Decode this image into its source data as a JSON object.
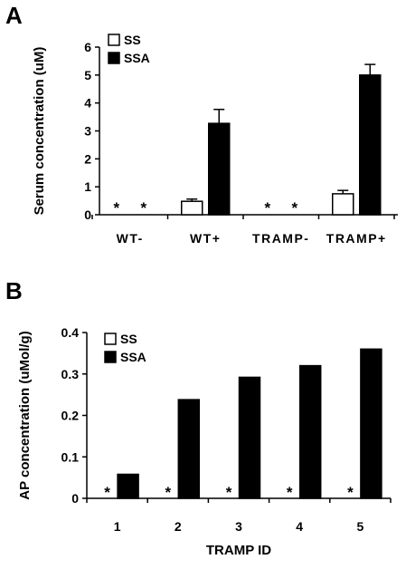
{
  "panels": {
    "a_letter": "A",
    "b_letter": "B"
  },
  "chart_data": [
    {
      "type": "bar",
      "panel": "A",
      "ylabel": "Serum concentration (uM)",
      "xlabel": "",
      "ylim": [
        0,
        6
      ],
      "yticks": [
        "0",
        "1",
        "2",
        "3",
        "4",
        "5",
        "6"
      ],
      "categories": [
        "WT-",
        "WT+",
        "TRAMP-",
        "TRAMP+"
      ],
      "series": [
        {
          "name": "SS",
          "values": [
            null,
            0.48,
            null,
            0.75
          ],
          "errors": [
            null,
            0.08,
            null,
            0.12
          ],
          "color": "#ffffff"
        },
        {
          "name": "SSA",
          "values": [
            null,
            3.27,
            null,
            5.0
          ],
          "errors": [
            null,
            0.5,
            null,
            0.38
          ],
          "color": "#000000"
        }
      ],
      "annotations": [
        {
          "category": "WT-",
          "series": "SS",
          "text": "*"
        },
        {
          "category": "WT-",
          "series": "SSA",
          "text": "*"
        },
        {
          "category": "TRAMP-",
          "series": "SS",
          "text": "*"
        },
        {
          "category": "TRAMP-",
          "series": "SSA",
          "text": "*"
        }
      ],
      "legend": "top-left",
      "grid": false
    },
    {
      "type": "bar",
      "panel": "B",
      "ylabel": "AP concentration (uMol/g)",
      "xlabel": "TRAMP ID",
      "ylim": [
        0,
        0.4
      ],
      "yticks": [
        "0",
        "0.1",
        "0.2",
        "0.3",
        "0.4"
      ],
      "categories": [
        "1",
        "2",
        "3",
        "4",
        "5"
      ],
      "series": [
        {
          "name": "SS",
          "values": [
            null,
            null,
            null,
            null,
            null
          ],
          "color": "#ffffff"
        },
        {
          "name": "SSA",
          "values": [
            0.058,
            0.238,
            0.292,
            0.32,
            0.36
          ],
          "color": "#000000"
        }
      ],
      "annotations": [
        {
          "category": "1",
          "series": "SS",
          "text": "*"
        },
        {
          "category": "2",
          "series": "SS",
          "text": "*"
        },
        {
          "category": "3",
          "series": "SS",
          "text": "*"
        },
        {
          "category": "4",
          "series": "SS",
          "text": "*"
        },
        {
          "category": "5",
          "series": "SS",
          "text": "*"
        }
      ],
      "legend": "top-left",
      "grid": false
    }
  ]
}
